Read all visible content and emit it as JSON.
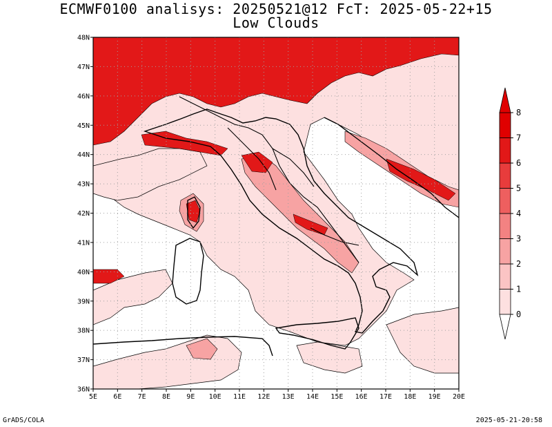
{
  "title": "ECMWF0100 analisys: 20250521@12 FcT: 2025-05-22+15",
  "subtitle": "Low Clouds",
  "axes": {
    "lon_labels": [
      "5E",
      "6E",
      "7E",
      "8E",
      "9E",
      "10E",
      "11E",
      "12E",
      "13E",
      "14E",
      "15E",
      "16E",
      "17E",
      "18E",
      "19E",
      "20E"
    ],
    "lat_labels": [
      "36N",
      "37N",
      "38N",
      "39N",
      "40N",
      "41N",
      "42N",
      "43N",
      "44N",
      "45N",
      "46N",
      "47N",
      "48N"
    ],
    "lon_range": [
      5,
      20
    ],
    "lat_range": [
      36,
      48
    ],
    "grid": "dotted"
  },
  "colorbar": {
    "levels": [
      "0",
      "1",
      "2",
      "3",
      "4",
      "5",
      "6",
      "7",
      "8"
    ],
    "colors": [
      "#ffffff",
      "#fde0e0",
      "#fbc4c4",
      "#f7a3a3",
      "#f38282",
      "#ee5f5f",
      "#e83c3c",
      "#e21818",
      "#e00000"
    ],
    "arrows": "both"
  },
  "footer": {
    "left": "GrADS/COLA",
    "right": "2025-05-21-20:58"
  },
  "palette": {
    "sea": "#ffffff",
    "low": "#fde0e0",
    "mid": "#f7a3a3",
    "high": "#e21818",
    "outline": "#000000"
  }
}
